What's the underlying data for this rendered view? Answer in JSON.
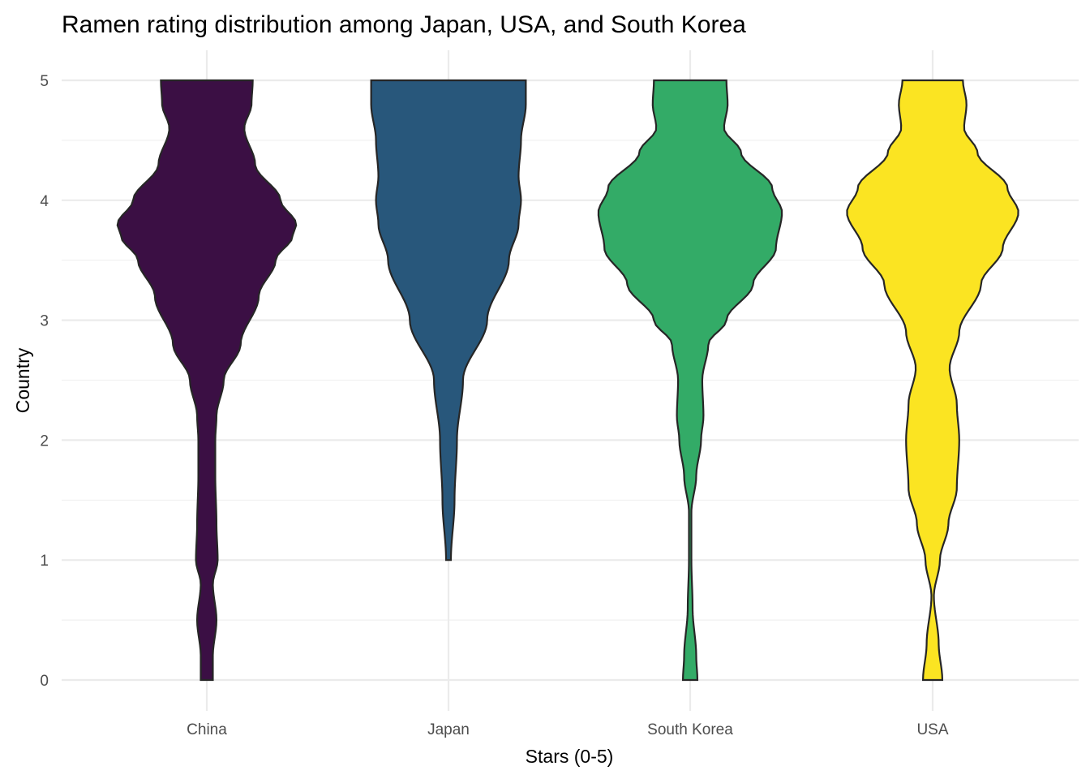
{
  "chart_data": {
    "type": "violin",
    "title": "Ramen rating distribution among Japan, USA, and South Korea",
    "xlabel": "Stars (0-5)",
    "ylabel": "Country",
    "categories": [
      "China",
      "Japan",
      "South Korea",
      "USA"
    ],
    "colors": [
      "#3b0f44",
      "#28577b",
      "#33ab67",
      "#fbe422"
    ],
    "ylim": [
      0,
      5
    ],
    "yticks": [
      0,
      1,
      2,
      3,
      4,
      5
    ],
    "grid": true,
    "legend": "none",
    "series": [
      {
        "name": "China",
        "y_range": [
          0,
          5
        ],
        "profile": [
          [
            0,
            0.05
          ],
          [
            0.2,
            0.05
          ],
          [
            0.5,
            0.08
          ],
          [
            0.8,
            0.05
          ],
          [
            1.0,
            0.09
          ],
          [
            1.3,
            0.08
          ],
          [
            1.7,
            0.07
          ],
          [
            2.0,
            0.07
          ],
          [
            2.2,
            0.08
          ],
          [
            2.5,
            0.14
          ],
          [
            2.8,
            0.28
          ],
          [
            3.2,
            0.43
          ],
          [
            3.5,
            0.57
          ],
          [
            3.7,
            0.71
          ],
          [
            3.8,
            0.74
          ],
          [
            4.0,
            0.61
          ],
          [
            4.3,
            0.4
          ],
          [
            4.6,
            0.31
          ],
          [
            4.8,
            0.37
          ],
          [
            5.0,
            0.38
          ]
        ]
      },
      {
        "name": "Japan",
        "y_range": [
          1,
          5
        ],
        "profile": [
          [
            1.0,
            0.02
          ],
          [
            1.5,
            0.05
          ],
          [
            2.0,
            0.07
          ],
          [
            2.5,
            0.12
          ],
          [
            3.0,
            0.32
          ],
          [
            3.5,
            0.5
          ],
          [
            3.8,
            0.58
          ],
          [
            4.0,
            0.6
          ],
          [
            4.2,
            0.58
          ],
          [
            4.5,
            0.6
          ],
          [
            4.8,
            0.64
          ],
          [
            5.0,
            0.64
          ]
        ]
      },
      {
        "name": "South Korea",
        "y_range": [
          0,
          5
        ],
        "profile": [
          [
            0,
            0.06
          ],
          [
            0.2,
            0.05
          ],
          [
            0.6,
            0.02
          ],
          [
            1.0,
            0.01
          ],
          [
            1.4,
            0.01
          ],
          [
            1.7,
            0.05
          ],
          [
            2.0,
            0.09
          ],
          [
            2.2,
            0.11
          ],
          [
            2.5,
            0.1
          ],
          [
            2.8,
            0.15
          ],
          [
            3.0,
            0.3
          ],
          [
            3.3,
            0.52
          ],
          [
            3.6,
            0.71
          ],
          [
            3.9,
            0.76
          ],
          [
            4.1,
            0.68
          ],
          [
            4.4,
            0.42
          ],
          [
            4.6,
            0.28
          ],
          [
            4.8,
            0.31
          ],
          [
            5.0,
            0.3
          ]
        ]
      },
      {
        "name": "USA",
        "y_range": [
          0,
          5
        ],
        "profile": [
          [
            0,
            0.08
          ],
          [
            0.3,
            0.05
          ],
          [
            0.7,
            0.01
          ],
          [
            1.0,
            0.06
          ],
          [
            1.3,
            0.13
          ],
          [
            1.6,
            0.2
          ],
          [
            2.0,
            0.22
          ],
          [
            2.3,
            0.2
          ],
          [
            2.6,
            0.14
          ],
          [
            2.9,
            0.22
          ],
          [
            3.3,
            0.4
          ],
          [
            3.6,
            0.58
          ],
          [
            3.9,
            0.71
          ],
          [
            4.1,
            0.62
          ],
          [
            4.4,
            0.37
          ],
          [
            4.6,
            0.26
          ],
          [
            4.8,
            0.28
          ],
          [
            5.0,
            0.25
          ]
        ]
      }
    ]
  }
}
